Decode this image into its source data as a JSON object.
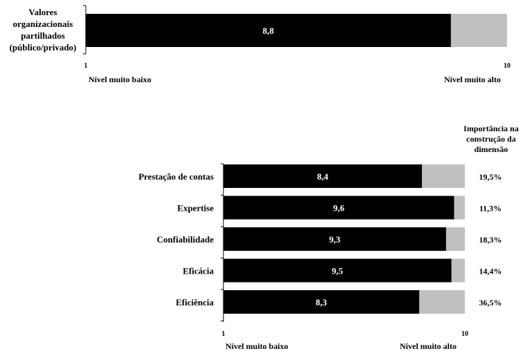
{
  "chart_data": [
    {
      "type": "bar",
      "orientation": "horizontal",
      "stacked": true,
      "categories": [
        "Valores organizacionais partilhados (público/privado)"
      ],
      "category_lines": [
        [
          "Valores",
          "organizacionais",
          "partilhados",
          "(público/privado)"
        ]
      ],
      "values": [
        8.8
      ],
      "value_labels": [
        "8,8"
      ],
      "xlim": [
        1,
        10
      ],
      "x_ticks": [
        "1",
        "10"
      ],
      "axis_ends": {
        "low": "Nível muito baixo",
        "high": "Nível muito alto"
      },
      "colors": {
        "value": "#000000",
        "remainder": "#c0c0c0",
        "label": "#ffffff"
      },
      "grid": false,
      "legend": "none"
    },
    {
      "type": "bar",
      "orientation": "horizontal",
      "stacked": true,
      "categories": [
        "Prestação de contas",
        "Expertise",
        "Confiabilidade",
        "Eficácia",
        "Eficiência"
      ],
      "values": [
        8.4,
        9.6,
        9.3,
        9.5,
        8.3
      ],
      "value_labels": [
        "8,4",
        "9,6",
        "9,3",
        "9,5",
        "8,3"
      ],
      "importance_header": [
        "Importância na",
        "construção da",
        "dimensão"
      ],
      "importance_labels": [
        "19,5%",
        "11,3%",
        "18,3%",
        "14,4%",
        "36,5%"
      ],
      "importance": [
        19.5,
        11.3,
        18.3,
        14.4,
        36.5
      ],
      "xlim": [
        1,
        10
      ],
      "x_ticks": [
        "1",
        "10"
      ],
      "axis_ends": {
        "low": "Nível muito baixo",
        "high": "Nível muito alto"
      },
      "colors": {
        "value": "#000000",
        "remainder": "#c0c0c0",
        "label": "#ffffff"
      },
      "grid": false,
      "legend": "none"
    }
  ]
}
